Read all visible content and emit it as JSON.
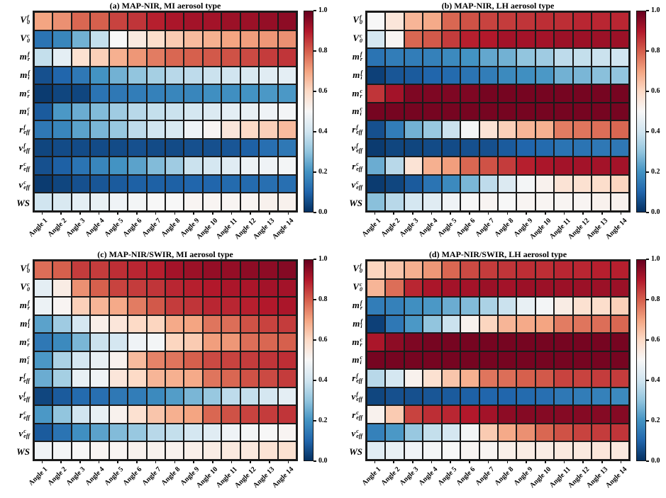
{
  "figure": {
    "background": "#ffffff",
    "grid_line_color": "#1a1a1a"
  },
  "chart_data": {
    "type": "heatmap",
    "colormap": "RdBu_r",
    "vmin": 0.0,
    "vmax": 1.0,
    "legend_position": "right-colorbar-per-panel",
    "colormap_stops": [
      "#053061",
      "#2166ac",
      "#4393c3",
      "#92c5de",
      "#d1e5f0",
      "#f7f7f7",
      "#fddbc7",
      "#f4a582",
      "#d6604d",
      "#b2182b",
      "#67001f"
    ],
    "colorbar_ticks": [
      "1.0",
      "0.8",
      "0.6",
      "0.4",
      "0.2",
      "0.0"
    ],
    "categories": [
      "Angle 1",
      "Angle 2",
      "Angle 3",
      "Angle 4",
      "Angle 5",
      "Angle 6",
      "Angle 7",
      "Angle 8",
      "Angle 9",
      "Angle 10",
      "Angle 11",
      "Angle 12",
      "Angle 13",
      "Angle 14"
    ],
    "parameters": [
      {
        "base": "V",
        "sup": "f",
        "sub": "0"
      },
      {
        "base": "V",
        "sup": "c",
        "sub": "0"
      },
      {
        "base": "m",
        "sup": "f",
        "sub": "r"
      },
      {
        "base": "m",
        "sup": "f",
        "sub": "i"
      },
      {
        "base": "m",
        "sup": "c",
        "sub": "r"
      },
      {
        "base": "m",
        "sup": "c",
        "sub": "i"
      },
      {
        "base": "r",
        "sup": "f",
        "sub": "eff"
      },
      {
        "base": "v",
        "sup": "f",
        "sub": "eff"
      },
      {
        "base": "r",
        "sup": "c",
        "sub": "eff"
      },
      {
        "base": "v",
        "sup": "c",
        "sub": "eff"
      },
      {
        "base": "WS"
      }
    ],
    "panels": [
      {
        "title": "(a) MAP-NIR, MI aerosol type",
        "values": [
          [
            0.7,
            0.73,
            0.79,
            0.8,
            0.84,
            0.86,
            0.89,
            0.91,
            0.92,
            0.92,
            0.93,
            0.93,
            0.94,
            0.95
          ],
          [
            0.13,
            0.17,
            0.26,
            0.38,
            0.5,
            0.55,
            0.59,
            0.63,
            0.66,
            0.68,
            0.7,
            0.71,
            0.72,
            0.73
          ],
          [
            0.38,
            0.45,
            0.58,
            0.62,
            0.68,
            0.72,
            0.76,
            0.79,
            0.8,
            0.81,
            0.82,
            0.83,
            0.85,
            0.86
          ],
          [
            0.06,
            0.1,
            0.14,
            0.2,
            0.26,
            0.3,
            0.33,
            0.36,
            0.37,
            0.39,
            0.4,
            0.42,
            0.44,
            0.45
          ],
          [
            0.02,
            0.04,
            0.04,
            0.13,
            0.14,
            0.15,
            0.16,
            0.17,
            0.17,
            0.19,
            0.19,
            0.2,
            0.21,
            0.21
          ],
          [
            0.08,
            0.21,
            0.25,
            0.28,
            0.32,
            0.36,
            0.38,
            0.39,
            0.41,
            0.43,
            0.45,
            0.46,
            0.48,
            0.49
          ],
          [
            0.14,
            0.17,
            0.23,
            0.27,
            0.31,
            0.37,
            0.4,
            0.42,
            0.48,
            0.51,
            0.56,
            0.6,
            0.62,
            0.66
          ],
          [
            0.04,
            0.05,
            0.05,
            0.05,
            0.05,
            0.06,
            0.05,
            0.05,
            0.06,
            0.06,
            0.07,
            0.09,
            0.12,
            0.14
          ],
          [
            0.06,
            0.09,
            0.13,
            0.17,
            0.2,
            0.23,
            0.28,
            0.32,
            0.39,
            0.41,
            0.44,
            0.47,
            0.48,
            0.49
          ],
          [
            0.02,
            0.04,
            0.06,
            0.07,
            0.08,
            0.09,
            0.09,
            0.09,
            0.1,
            0.1,
            0.11,
            0.11,
            0.12,
            0.12
          ],
          [
            0.4,
            0.42,
            0.45,
            0.46,
            0.48,
            0.49,
            0.5,
            0.5,
            0.51,
            0.51,
            0.51,
            0.51,
            0.52,
            0.52
          ]
        ]
      },
      {
        "title": "(b) MAP-NIR, LH aerosol type",
        "values": [
          [
            0.5,
            0.56,
            0.67,
            0.69,
            0.79,
            0.82,
            0.84,
            0.85,
            0.86,
            0.87,
            0.87,
            0.88,
            0.88,
            0.88
          ],
          [
            0.41,
            0.51,
            0.79,
            0.81,
            0.85,
            0.89,
            0.9,
            0.92,
            0.92,
            0.92,
            0.93,
            0.93,
            0.93,
            0.93
          ],
          [
            0.13,
            0.15,
            0.15,
            0.16,
            0.18,
            0.2,
            0.24,
            0.26,
            0.3,
            0.32,
            0.37,
            0.38,
            0.39,
            0.4
          ],
          [
            0.03,
            0.07,
            0.08,
            0.1,
            0.11,
            0.13,
            0.15,
            0.18,
            0.19,
            0.21,
            0.26,
            0.27,
            0.29,
            0.3
          ],
          [
            0.86,
            0.92,
            0.97,
            0.97,
            0.97,
            0.97,
            0.98,
            0.98,
            0.98,
            0.98,
            0.98,
            0.98,
            0.98,
            0.98
          ],
          [
            0.98,
            0.98,
            0.98,
            0.98,
            0.98,
            0.98,
            0.98,
            0.98,
            0.98,
            0.98,
            0.98,
            0.98,
            0.98,
            0.98
          ],
          [
            0.06,
            0.15,
            0.26,
            0.31,
            0.39,
            0.49,
            0.57,
            0.62,
            0.67,
            0.68,
            0.76,
            0.77,
            0.78,
            0.79
          ],
          [
            0.02,
            0.04,
            0.04,
            0.05,
            0.05,
            0.06,
            0.06,
            0.08,
            0.1,
            0.11,
            0.13,
            0.13,
            0.14,
            0.14
          ],
          [
            0.25,
            0.36,
            0.57,
            0.68,
            0.71,
            0.79,
            0.82,
            0.85,
            0.89,
            0.91,
            0.92,
            0.92,
            0.92,
            0.92
          ],
          [
            0.02,
            0.04,
            0.08,
            0.13,
            0.18,
            0.27,
            0.37,
            0.43,
            0.49,
            0.52,
            0.57,
            0.58,
            0.59,
            0.61
          ],
          [
            0.29,
            0.36,
            0.41,
            0.44,
            0.48,
            0.5,
            0.51,
            0.5,
            0.51,
            0.51,
            0.51,
            0.51,
            0.52,
            0.52
          ]
        ]
      },
      {
        "title": "(c) MAP-NIR/SWIR, MI aerosol type",
        "values": [
          [
            0.78,
            0.8,
            0.85,
            0.85,
            0.87,
            0.88,
            0.89,
            0.92,
            0.93,
            0.94,
            0.94,
            0.95,
            0.95,
            0.96
          ],
          [
            0.45,
            0.54,
            0.73,
            0.8,
            0.84,
            0.85,
            0.86,
            0.88,
            0.89,
            0.9,
            0.91,
            0.91,
            0.92,
            0.92
          ],
          [
            0.47,
            0.51,
            0.62,
            0.67,
            0.69,
            0.76,
            0.81,
            0.85,
            0.86,
            0.88,
            0.88,
            0.89,
            0.9,
            0.91
          ],
          [
            0.23,
            0.32,
            0.41,
            0.53,
            0.56,
            0.6,
            0.61,
            0.69,
            0.7,
            0.77,
            0.78,
            0.82,
            0.84,
            0.85
          ],
          [
            0.14,
            0.18,
            0.27,
            0.39,
            0.41,
            0.48,
            0.49,
            0.61,
            0.63,
            0.71,
            0.72,
            0.78,
            0.79,
            0.8
          ],
          [
            0.21,
            0.34,
            0.41,
            0.46,
            0.52,
            0.66,
            0.75,
            0.77,
            0.8,
            0.83,
            0.84,
            0.85,
            0.86,
            0.87
          ],
          [
            0.25,
            0.33,
            0.46,
            0.48,
            0.56,
            0.6,
            0.67,
            0.68,
            0.69,
            0.77,
            0.79,
            0.82,
            0.83,
            0.85
          ],
          [
            0.04,
            0.08,
            0.11,
            0.12,
            0.14,
            0.15,
            0.18,
            0.22,
            0.27,
            0.31,
            0.37,
            0.38,
            0.41,
            0.45
          ],
          [
            0.21,
            0.3,
            0.4,
            0.46,
            0.52,
            0.58,
            0.64,
            0.68,
            0.7,
            0.79,
            0.82,
            0.84,
            0.85,
            0.86
          ],
          [
            0.08,
            0.13,
            0.19,
            0.23,
            0.28,
            0.31,
            0.36,
            0.38,
            0.41,
            0.44,
            0.48,
            0.49,
            0.5,
            0.51
          ],
          [
            0.48,
            0.49,
            0.5,
            0.51,
            0.51,
            0.52,
            0.52,
            0.52,
            0.53,
            0.54,
            0.55,
            0.55,
            0.57,
            0.58
          ]
        ]
      },
      {
        "title": "(d) MAP-NIR/SWIR, LH aerosol type",
        "values": [
          [
            0.61,
            0.64,
            0.68,
            0.72,
            0.79,
            0.83,
            0.85,
            0.86,
            0.87,
            0.87,
            0.88,
            0.88,
            0.89,
            0.89
          ],
          [
            0.67,
            0.78,
            0.88,
            0.91,
            0.92,
            0.92,
            0.93,
            0.92,
            0.93,
            0.93,
            0.93,
            0.93,
            0.93,
            0.93
          ],
          [
            0.15,
            0.16,
            0.19,
            0.21,
            0.25,
            0.28,
            0.34,
            0.39,
            0.46,
            0.49,
            0.54,
            0.58,
            0.59,
            0.62
          ],
          [
            0.03,
            0.14,
            0.21,
            0.3,
            0.39,
            0.52,
            0.61,
            0.67,
            0.69,
            0.7,
            0.76,
            0.77,
            0.78,
            0.79
          ],
          [
            0.91,
            0.95,
            0.97,
            0.98,
            0.98,
            0.98,
            0.98,
            0.98,
            0.98,
            0.98,
            0.98,
            0.98,
            0.98,
            0.98
          ],
          [
            0.98,
            0.98,
            0.98,
            0.98,
            0.98,
            0.98,
            0.98,
            0.98,
            0.98,
            0.98,
            0.98,
            0.98,
            0.98,
            0.98
          ],
          [
            0.36,
            0.41,
            0.52,
            0.58,
            0.64,
            0.68,
            0.77,
            0.78,
            0.8,
            0.81,
            0.84,
            0.84,
            0.85,
            0.85
          ],
          [
            0.04,
            0.06,
            0.06,
            0.07,
            0.08,
            0.09,
            0.1,
            0.1,
            0.11,
            0.12,
            0.14,
            0.15,
            0.16,
            0.18
          ],
          [
            0.52,
            0.63,
            0.84,
            0.87,
            0.88,
            0.9,
            0.92,
            0.95,
            0.96,
            0.96,
            0.96,
            0.96,
            0.96,
            0.96
          ],
          [
            0.16,
            0.21,
            0.31,
            0.38,
            0.41,
            0.49,
            0.63,
            0.69,
            0.73,
            0.79,
            0.82,
            0.84,
            0.85,
            0.86
          ],
          [
            0.44,
            0.46,
            0.48,
            0.49,
            0.5,
            0.51,
            0.51,
            0.53,
            0.54,
            0.54,
            0.55,
            0.55,
            0.56,
            0.55
          ]
        ]
      }
    ]
  }
}
